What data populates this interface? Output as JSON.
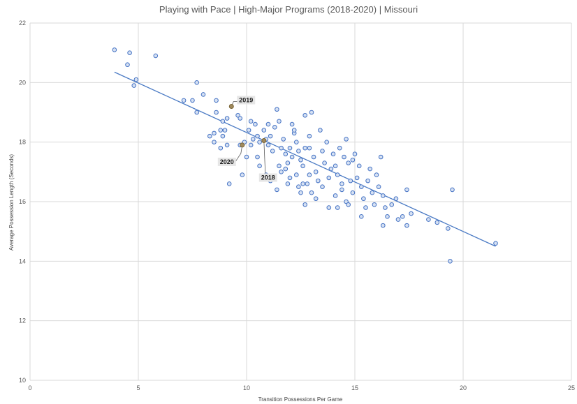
{
  "chart_data": {
    "type": "scatter",
    "title": "Playing with Pace | High-Major Programs (2018-2020) | Missouri",
    "xlabel": "Transition Possessions Per Game",
    "ylabel": "Average Possession Length (Seconds)",
    "xlim": [
      0,
      25
    ],
    "ylim": [
      10,
      22
    ],
    "x_ticks": [
      0,
      5,
      10,
      15,
      20,
      25
    ],
    "y_ticks": [
      10,
      12,
      14,
      16,
      18,
      20,
      22
    ],
    "grid": "vertical and horizontal major gridlines",
    "trendline": {
      "type": "linear",
      "x_range": [
        3.9,
        21.5
      ],
      "y_range": [
        20.35,
        14.5
      ]
    },
    "colors": {
      "point_fill": "#d6e1f3",
      "point_stroke": "#4472c4",
      "trendline": "#4a7ac4",
      "highlight_fill": "#a08a5e",
      "highlight_stroke": "#7a6535",
      "grid": "#d9d9d9",
      "annotation_box": "#e6e6e6"
    },
    "points": [
      {
        "x": 3.9,
        "y": 21.1
      },
      {
        "x": 4.6,
        "y": 21.0
      },
      {
        "x": 5.8,
        "y": 20.9
      },
      {
        "x": 4.5,
        "y": 20.6
      },
      {
        "x": 4.9,
        "y": 20.1
      },
      {
        "x": 4.8,
        "y": 19.9
      },
      {
        "x": 7.7,
        "y": 20.0
      },
      {
        "x": 8.0,
        "y": 19.6
      },
      {
        "x": 7.5,
        "y": 19.4
      },
      {
        "x": 7.1,
        "y": 19.4
      },
      {
        "x": 8.6,
        "y": 19.4
      },
      {
        "x": 7.7,
        "y": 19.0
      },
      {
        "x": 8.6,
        "y": 19.0
      },
      {
        "x": 8.9,
        "y": 18.7
      },
      {
        "x": 9.1,
        "y": 18.8
      },
      {
        "x": 9.6,
        "y": 18.9
      },
      {
        "x": 9.7,
        "y": 18.8
      },
      {
        "x": 8.8,
        "y": 18.4
      },
      {
        "x": 9.0,
        "y": 18.4
      },
      {
        "x": 8.3,
        "y": 18.2
      },
      {
        "x": 8.5,
        "y": 18.3
      },
      {
        "x": 8.9,
        "y": 18.2
      },
      {
        "x": 8.5,
        "y": 18.0
      },
      {
        "x": 8.8,
        "y": 17.8
      },
      {
        "x": 9.1,
        "y": 17.9
      },
      {
        "x": 9.7,
        "y": 17.9
      },
      {
        "x": 9.9,
        "y": 18.0
      },
      {
        "x": 10.0,
        "y": 17.5
      },
      {
        "x": 10.1,
        "y": 18.4
      },
      {
        "x": 10.2,
        "y": 18.7
      },
      {
        "x": 10.4,
        "y": 18.6
      },
      {
        "x": 10.3,
        "y": 18.1
      },
      {
        "x": 10.5,
        "y": 18.2
      },
      {
        "x": 10.6,
        "y": 18.0
      },
      {
        "x": 10.2,
        "y": 17.9
      },
      {
        "x": 10.8,
        "y": 18.4
      },
      {
        "x": 10.9,
        "y": 18.1
      },
      {
        "x": 11.0,
        "y": 18.6
      },
      {
        "x": 11.1,
        "y": 18.2
      },
      {
        "x": 11.3,
        "y": 18.5
      },
      {
        "x": 11.4,
        "y": 19.1
      },
      {
        "x": 11.5,
        "y": 18.7
      },
      {
        "x": 11.0,
        "y": 17.9
      },
      {
        "x": 10.5,
        "y": 17.5
      },
      {
        "x": 10.6,
        "y": 17.2
      },
      {
        "x": 9.8,
        "y": 16.9
      },
      {
        "x": 9.2,
        "y": 16.6
      },
      {
        "x": 11.2,
        "y": 17.7
      },
      {
        "x": 11.6,
        "y": 17.8
      },
      {
        "x": 11.7,
        "y": 18.1
      },
      {
        "x": 11.8,
        "y": 17.6
      },
      {
        "x": 11.9,
        "y": 17.3
      },
      {
        "x": 11.5,
        "y": 17.2
      },
      {
        "x": 11.6,
        "y": 17.0
      },
      {
        "x": 11.8,
        "y": 17.1
      },
      {
        "x": 11.9,
        "y": 16.6
      },
      {
        "x": 12.0,
        "y": 17.8
      },
      {
        "x": 12.1,
        "y": 17.5
      },
      {
        "x": 12.2,
        "y": 18.3
      },
      {
        "x": 12.3,
        "y": 18.0
      },
      {
        "x": 12.4,
        "y": 17.7
      },
      {
        "x": 12.5,
        "y": 17.4
      },
      {
        "x": 12.1,
        "y": 18.6
      },
      {
        "x": 12.2,
        "y": 18.4
      },
      {
        "x": 12.3,
        "y": 16.9
      },
      {
        "x": 12.4,
        "y": 16.5
      },
      {
        "x": 12.6,
        "y": 17.2
      },
      {
        "x": 12.7,
        "y": 17.8
      },
      {
        "x": 12.7,
        "y": 18.9
      },
      {
        "x": 12.9,
        "y": 18.2
      },
      {
        "x": 12.9,
        "y": 17.8
      },
      {
        "x": 13.0,
        "y": 19.0
      },
      {
        "x": 13.1,
        "y": 17.5
      },
      {
        "x": 13.2,
        "y": 17.0
      },
      {
        "x": 13.3,
        "y": 16.7
      },
      {
        "x": 13.4,
        "y": 18.4
      },
      {
        "x": 13.5,
        "y": 17.7
      },
      {
        "x": 13.6,
        "y": 17.3
      },
      {
        "x": 13.7,
        "y": 18.0
      },
      {
        "x": 13.8,
        "y": 16.8
      },
      {
        "x": 13.9,
        "y": 17.1
      },
      {
        "x": 13.0,
        "y": 16.3
      },
      {
        "x": 12.7,
        "y": 15.9
      },
      {
        "x": 12.9,
        "y": 16.9
      },
      {
        "x": 12.5,
        "y": 16.3
      },
      {
        "x": 12.8,
        "y": 16.6
      },
      {
        "x": 14.0,
        "y": 17.6
      },
      {
        "x": 14.1,
        "y": 17.2
      },
      {
        "x": 14.2,
        "y": 16.9
      },
      {
        "x": 14.3,
        "y": 17.8
      },
      {
        "x": 14.4,
        "y": 16.6
      },
      {
        "x": 14.5,
        "y": 17.5
      },
      {
        "x": 14.6,
        "y": 18.1
      },
      {
        "x": 14.7,
        "y": 17.3
      },
      {
        "x": 14.8,
        "y": 16.7
      },
      {
        "x": 14.9,
        "y": 17.4
      },
      {
        "x": 14.1,
        "y": 16.2
      },
      {
        "x": 14.2,
        "y": 15.8
      },
      {
        "x": 14.4,
        "y": 16.4
      },
      {
        "x": 14.6,
        "y": 16.0
      },
      {
        "x": 14.7,
        "y": 15.9
      },
      {
        "x": 14.9,
        "y": 16.3
      },
      {
        "x": 15.0,
        "y": 17.6
      },
      {
        "x": 15.1,
        "y": 16.8
      },
      {
        "x": 15.2,
        "y": 17.2
      },
      {
        "x": 15.3,
        "y": 16.5
      },
      {
        "x": 15.4,
        "y": 16.1
      },
      {
        "x": 15.5,
        "y": 15.8
      },
      {
        "x": 15.6,
        "y": 16.7
      },
      {
        "x": 15.7,
        "y": 17.1
      },
      {
        "x": 15.8,
        "y": 16.3
      },
      {
        "x": 15.9,
        "y": 15.9
      },
      {
        "x": 16.0,
        "y": 16.9
      },
      {
        "x": 16.1,
        "y": 16.5
      },
      {
        "x": 16.2,
        "y": 17.5
      },
      {
        "x": 16.3,
        "y": 16.2
      },
      {
        "x": 16.4,
        "y": 15.8
      },
      {
        "x": 16.5,
        "y": 15.5
      },
      {
        "x": 16.7,
        "y": 15.9
      },
      {
        "x": 16.9,
        "y": 16.1
      },
      {
        "x": 17.0,
        "y": 15.4
      },
      {
        "x": 17.2,
        "y": 15.5
      },
      {
        "x": 17.4,
        "y": 16.4
      },
      {
        "x": 17.4,
        "y": 15.2
      },
      {
        "x": 17.6,
        "y": 15.6
      },
      {
        "x": 15.3,
        "y": 15.5
      },
      {
        "x": 16.3,
        "y": 15.2
      },
      {
        "x": 18.4,
        "y": 15.4
      },
      {
        "x": 18.8,
        "y": 15.3
      },
      {
        "x": 19.3,
        "y": 15.1
      },
      {
        "x": 19.5,
        "y": 16.4
      },
      {
        "x": 19.4,
        "y": 14.0
      },
      {
        "x": 21.5,
        "y": 14.6
      },
      {
        "x": 11.1,
        "y": 16.7
      },
      {
        "x": 11.4,
        "y": 16.4
      },
      {
        "x": 10.9,
        "y": 16.9
      },
      {
        "x": 13.5,
        "y": 16.5
      },
      {
        "x": 13.8,
        "y": 15.8
      },
      {
        "x": 13.2,
        "y": 16.1
      },
      {
        "x": 12.0,
        "y": 16.8
      },
      {
        "x": 12.6,
        "y": 16.6
      }
    ],
    "highlights": [
      {
        "label": "2019",
        "x": 9.3,
        "y": 19.2
      },
      {
        "label": "2020",
        "x": 9.8,
        "y": 17.9
      },
      {
        "label": "2018",
        "x": 10.8,
        "y": 18.05
      }
    ]
  }
}
